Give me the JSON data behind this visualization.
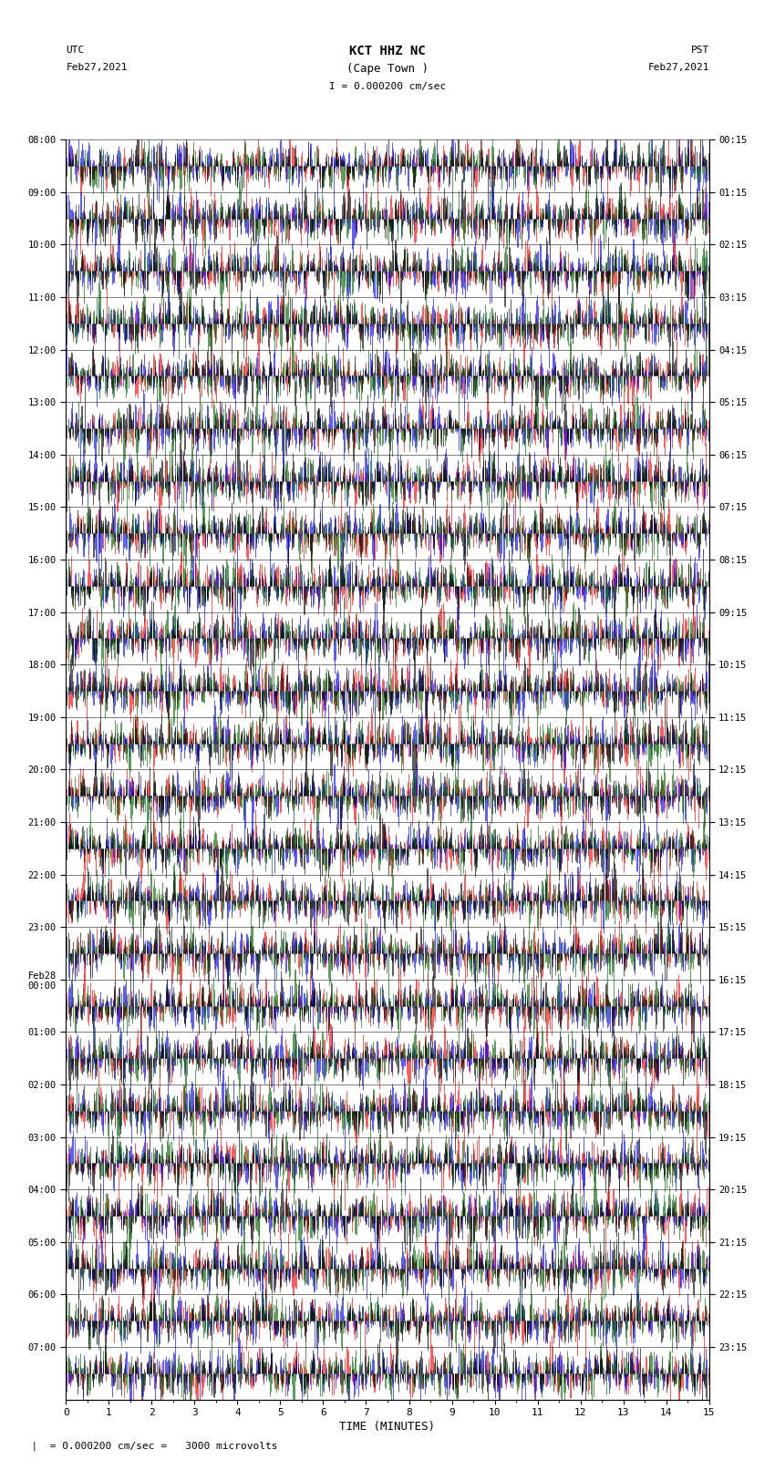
{
  "title_line1": "KCT HHZ NC",
  "title_line2": "(Cape Town )",
  "scale_label": "I = 0.000200 cm/sec",
  "utc_label_line1": "UTC",
  "utc_label_line2": "Feb27,2021",
  "pst_label_line1": "PST",
  "pst_label_line2": "Feb27,2021",
  "xlabel": "TIME (MINUTES)",
  "footer": "= 0.000200 cm/sec =   3000 microvolts",
  "xmin": 0,
  "xmax": 15,
  "num_rows": 24,
  "left_times": [
    "08:00",
    "09:00",
    "10:00",
    "11:00",
    "12:00",
    "13:00",
    "14:00",
    "15:00",
    "16:00",
    "17:00",
    "18:00",
    "19:00",
    "20:00",
    "21:00",
    "22:00",
    "23:00",
    "Feb28\n00:00",
    "01:00",
    "02:00",
    "03:00",
    "04:00",
    "05:00",
    "06:00",
    "07:00"
  ],
  "right_times": [
    "00:15",
    "01:15",
    "02:15",
    "03:15",
    "04:15",
    "05:15",
    "06:15",
    "07:15",
    "08:15",
    "09:15",
    "10:15",
    "11:15",
    "12:15",
    "13:15",
    "14:15",
    "15:15",
    "16:15",
    "17:15",
    "18:15",
    "19:15",
    "20:15",
    "21:15",
    "22:15",
    "23:15"
  ],
  "bg_color": "#ffffff",
  "trace_colors": [
    "#ff0000",
    "#0000ff",
    "#006400",
    "#000000"
  ],
  "fig_width": 8.5,
  "fig_height": 16.13,
  "dpi": 100,
  "seed": 42
}
